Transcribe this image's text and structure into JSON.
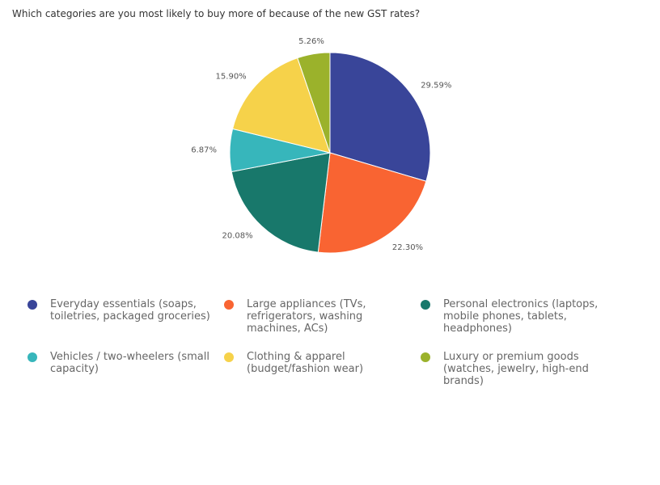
{
  "chart_data": {
    "type": "pie",
    "title": "Which categories are you most likely to buy more of because of the new GST rates?",
    "categories": [
      "Everyday essentials (soaps, toiletries, packaged groceries)",
      "Large appliances (TVs, refrigerators, washing machines, ACs)",
      "Personal electronics (laptops, mobile phones, tablets, headphones)",
      "Vehicles / two-wheelers (small capacity)",
      "Clothing & apparel (budget/fashion wear)",
      "Luxury or premium goods (watches, jewelry, high-end brands)"
    ],
    "values": [
      29.59,
      22.3,
      20.08,
      6.87,
      15.9,
      5.26
    ],
    "value_labels": [
      "29.59%",
      "22.30%",
      "20.08%",
      "6.87%",
      "15.90%",
      "5.26%"
    ],
    "colors": [
      "#394599",
      "#f96432",
      "#18786b",
      "#37b6bb",
      "#f6d24a",
      "#9bb22b"
    ],
    "legend_position": "bottom",
    "start_angle": "top, clockwise"
  }
}
